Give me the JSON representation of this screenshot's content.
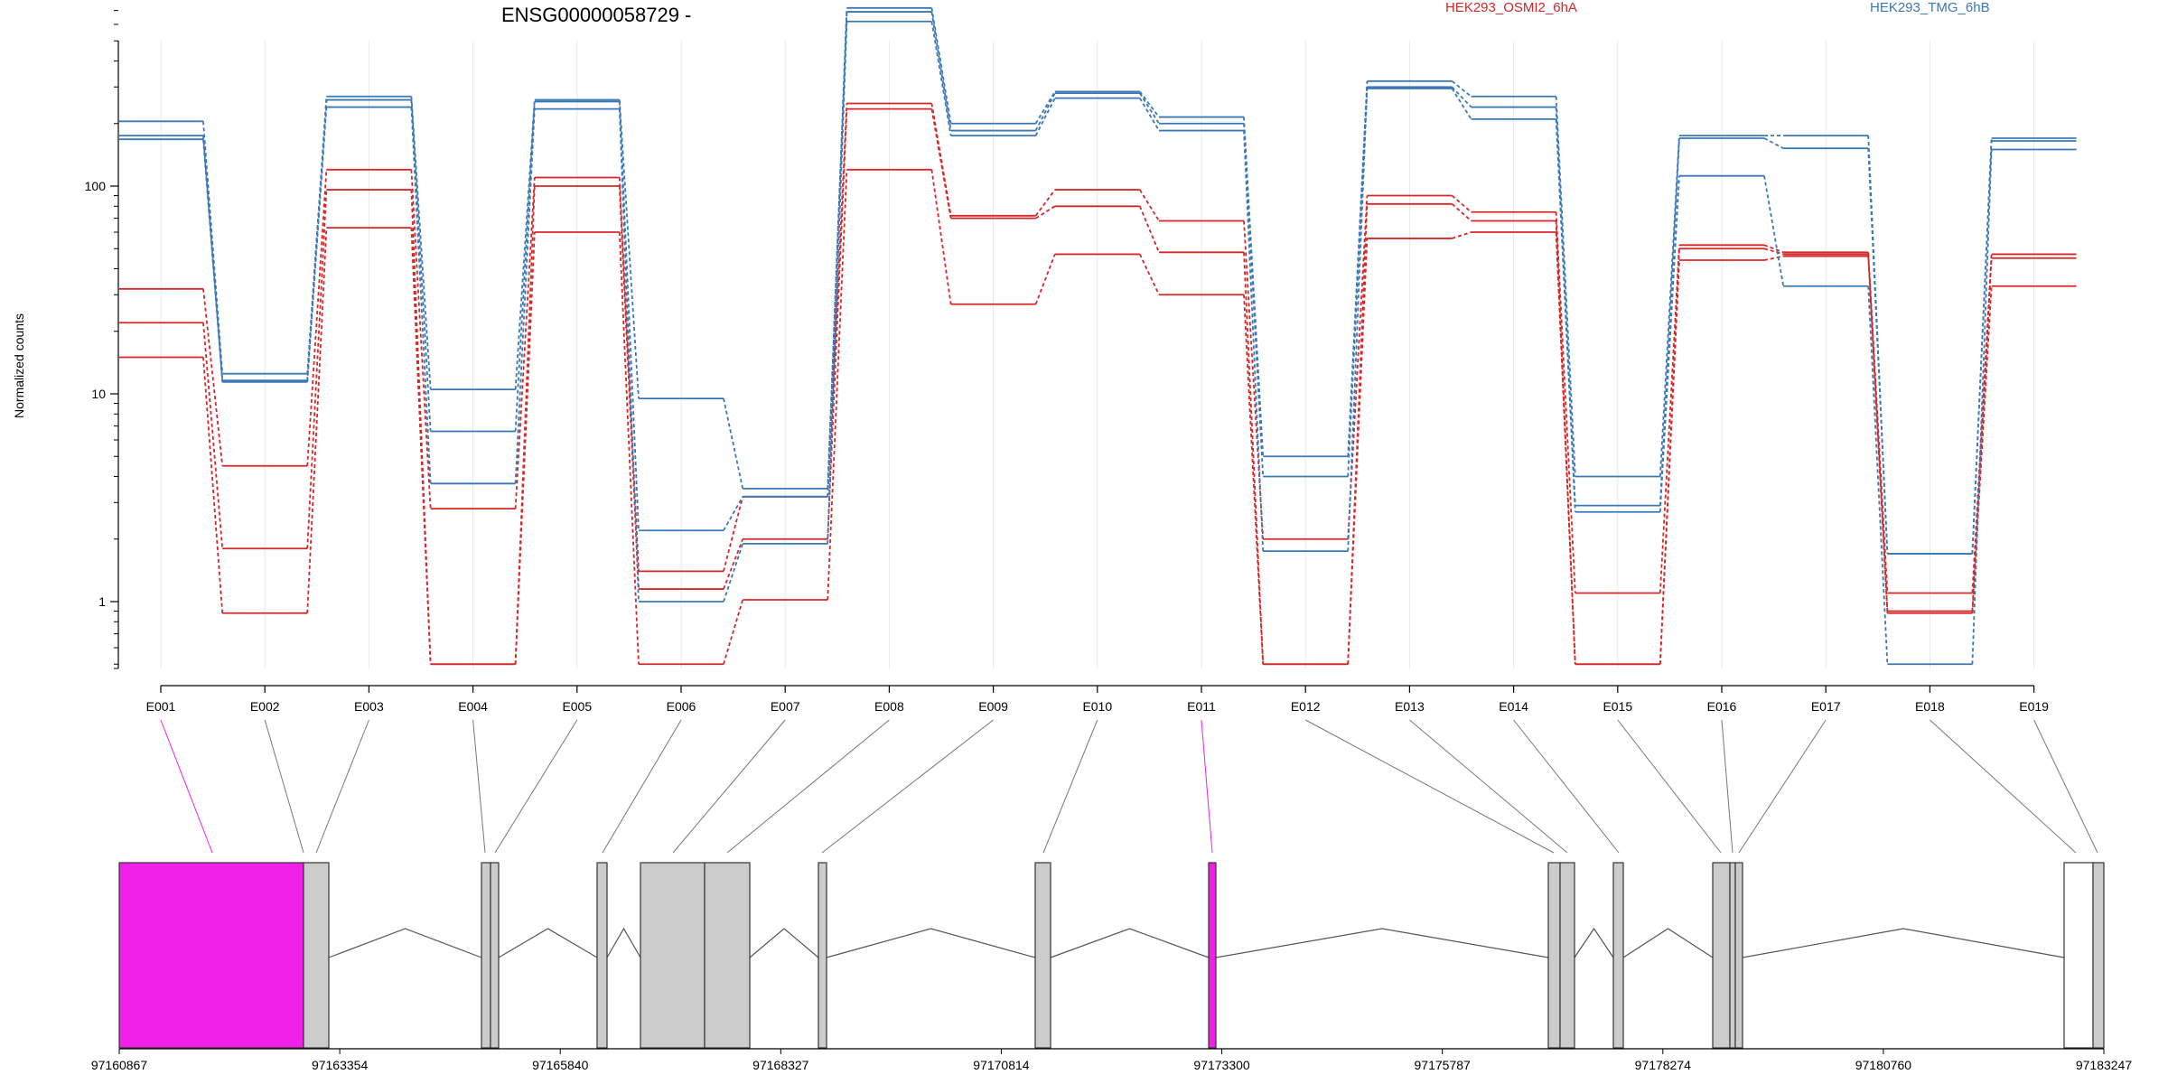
{
  "chart_data": {
    "type": "line",
    "title": "ENSG00000058729 -",
    "ylabel": "Normalized counts",
    "xlabel": "",
    "y_scale": "log",
    "ylim": [
      0.5,
      900
    ],
    "y_ticks": [
      "1",
      "10",
      "100"
    ],
    "categories": [
      "E001",
      "E002",
      "E003",
      "E004",
      "E005",
      "E006",
      "E007",
      "E008",
      "E009",
      "E010",
      "E011",
      "E012",
      "E013",
      "E014",
      "E015",
      "E016",
      "E017",
      "E018",
      "E019"
    ],
    "legend": [
      {
        "name": "HEK293_OSMI2_6hA",
        "color": "#d62728"
      },
      {
        "name": "HEK293_TMG_6hB",
        "color": "#3a78b5"
      }
    ],
    "series": [
      {
        "group": "HEK293_OSMI2_6hA",
        "color": "#d62728",
        "values": [
          32,
          4.5,
          120,
          2.8,
          110,
          1.4,
          3.2,
          250,
          72,
          96,
          68,
          2,
          90,
          75,
          1.1,
          52,
          48,
          1.1,
          47
        ]
      },
      {
        "group": "HEK293_OSMI2_6hA",
        "color": "#d62728",
        "values": [
          22,
          1.8,
          96,
          0.5,
          100,
          1.15,
          2,
          235,
          70,
          80,
          48,
          0.5,
          82,
          68,
          0.5,
          50,
          47,
          0.9,
          45
        ]
      },
      {
        "group": "HEK293_OSMI2_6hA",
        "color": "#d62728",
        "values": [
          15,
          0.88,
          63,
          0.5,
          60,
          0.5,
          1.02,
          120,
          27,
          47,
          30,
          0.5,
          56,
          60,
          0.5,
          44,
          46,
          0.88,
          33
        ]
      },
      {
        "group": "HEK293_TMG_6hB",
        "color": "#3a78b5",
        "values": [
          205,
          12.5,
          270,
          10.5,
          260,
          9.5,
          3.5,
          720,
          200,
          285,
          215,
          5,
          320,
          270,
          4,
          175,
          175,
          1.7,
          170
        ]
      },
      {
        "group": "HEK293_TMG_6hB",
        "color": "#3a78b5",
        "values": [
          175,
          11.6,
          260,
          6.6,
          255,
          2.2,
          3.2,
          690,
          185,
          280,
          200,
          4,
          300,
          240,
          2.9,
          170,
          152,
          1.7,
          165
        ]
      },
      {
        "group": "HEK293_TMG_6hB",
        "color": "#3a78b5",
        "values": [
          168,
          11.4,
          240,
          3.7,
          235,
          1,
          1.9,
          620,
          175,
          265,
          185,
          1.75,
          295,
          210,
          2.7,
          112,
          33,
          0.5,
          150
        ]
      }
    ],
    "gene_model": {
      "coordinate_ticks": [
        "97160867",
        "97163354",
        "97165840",
        "97168327",
        "97170814",
        "97173300",
        "97175787",
        "97178274",
        "97180760",
        "97183247"
      ],
      "highlighted_exons": [
        "E001",
        "E011"
      ],
      "highlight_color": "#f020e8",
      "exon_color": "#cccccc"
    }
  }
}
